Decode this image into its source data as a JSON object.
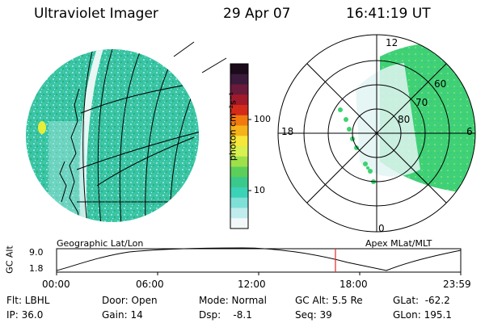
{
  "header": {
    "instrument": "Ultraviolet Imager",
    "date": "29 Apr 07",
    "time": "16:41:19 UT"
  },
  "colorbar": {
    "unit_label": "photon cm⁻²s⁻¹",
    "ticks": [
      "100",
      "10"
    ],
    "colors": [
      "#1a0a1a",
      "#3a1a3a",
      "#6a1a3a",
      "#a01a2a",
      "#d42a1a",
      "#f07a10",
      "#f5b21a",
      "#f6e73a",
      "#d8f050",
      "#9ee04a",
      "#5ccf5a",
      "#3ac98a",
      "#3cd2b8",
      "#7fe0d8",
      "#c0eced",
      "#f2f8f8"
    ]
  },
  "left_map": {
    "label": "Geographic Lat/Lon",
    "fill_color": "#34c0a4",
    "accent_color": "#dfe93a"
  },
  "polar_map": {
    "label": "Apex  MLat/MLT",
    "mlt_labels": [
      "12",
      "18",
      "6",
      "0"
    ],
    "lat_labels": [
      "60",
      "70",
      "80"
    ],
    "fill_color": "#3dd271"
  },
  "alt_plot": {
    "ylabel": "GC Alt",
    "yticks": [
      "9.0",
      "1.8"
    ],
    "xticks": [
      "00:00",
      "06:00",
      "12:00",
      "18:00",
      "23:59"
    ],
    "marker_time": "16:41",
    "marker_color": "#e8281e"
  },
  "info": {
    "flt": "Flt: LBHL",
    "ip": "IP: 36.0",
    "door": "Door: Open",
    "gain": "Gain: 14",
    "mode": "Mode: Normal",
    "dsp": "Dsp:    -8.1",
    "gcalt": "GC Alt: 5.5 Re",
    "seq": "Seq: 39",
    "glat": "GLat:  -62.2",
    "glon": "GLon: 195.1"
  }
}
